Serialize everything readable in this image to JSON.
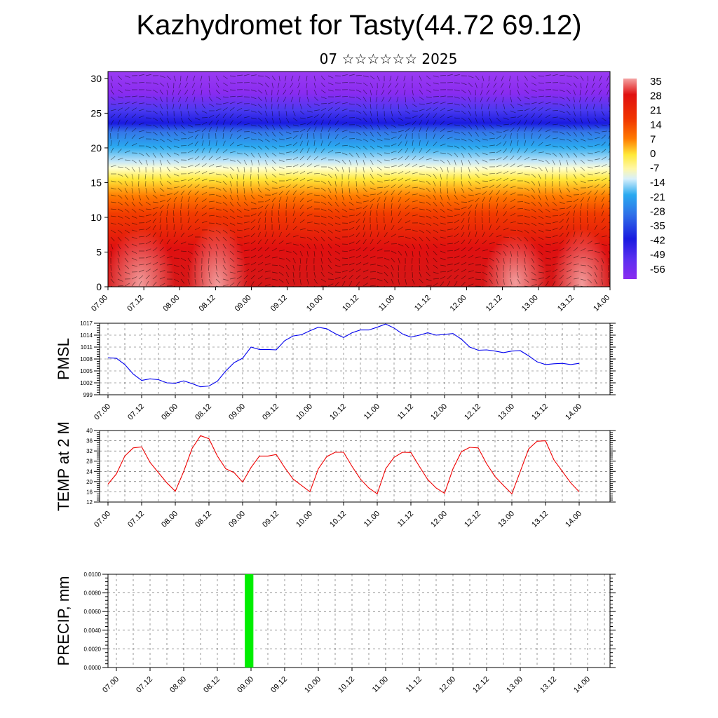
{
  "header": {
    "title": "Kazhydromet for Tasty(44.72 69.12)",
    "subtitle": "07 ☆☆☆☆☆☆ 2025"
  },
  "chart_data": [
    {
      "type": "heatmap",
      "name": "vertical cross-section",
      "y_ticks": [
        "0",
        "5",
        "10",
        "15",
        "20",
        "25",
        "30"
      ],
      "ylim": [
        0,
        31
      ],
      "x_ticks": [
        "07.00",
        "07.12",
        "08.00",
        "08.12",
        "09.00",
        "09.12",
        "10.00",
        "10.12",
        "11.00",
        "11.12",
        "12.00",
        "12.12",
        "13.00",
        "13.12",
        "14.00"
      ],
      "colorbar_labels": [
        "35",
        "28",
        "21",
        "14",
        "7",
        "0",
        "-7",
        "-14",
        "-21",
        "-28",
        "-35",
        "-42",
        "-49",
        "-56"
      ],
      "colorbar_range": [
        -63,
        42
      ],
      "colors": {
        "hot": "#f4a3a3",
        "red": "#e01010",
        "orange": "#ff7a00",
        "yellow": "#ffe93a",
        "cyan": "#2aaaf0",
        "blue": "#1a1ae0",
        "purple": "#8a2bf0"
      },
      "overlay": "wind barbs"
    },
    {
      "type": "line",
      "ylabel": "PMSL",
      "y_ticks": [
        "999",
        "1002",
        "1005",
        "1008",
        "1011",
        "1014",
        "1017"
      ],
      "ylim": [
        999,
        1017
      ],
      "x_ticks": [
        "07.00",
        "07.12",
        "08.00",
        "08.12",
        "09.00",
        "09.12",
        "10.00",
        "10.12",
        "11.00",
        "11.12",
        "12.00",
        "12.12",
        "13.00",
        "13.12",
        "14.00"
      ],
      "x_hours": [
        0,
        3,
        6,
        9,
        12,
        15,
        18,
        21,
        24,
        27,
        30,
        33,
        36,
        39,
        42,
        45,
        48,
        51,
        54,
        57,
        60,
        63,
        66,
        69,
        72,
        75,
        78,
        81,
        84,
        87,
        90,
        93,
        96,
        99,
        102,
        105,
        108,
        111,
        114,
        117,
        120,
        123,
        126,
        129,
        132,
        135,
        138,
        141,
        144,
        147,
        150,
        153,
        156,
        159,
        162,
        165,
        168
      ],
      "values": [
        1008.3,
        1008.2,
        1006.6,
        1004.2,
        1002.6,
        1003.0,
        1002.8,
        1002.0,
        1001.9,
        1002.5,
        1001.8,
        1001.0,
        1001.2,
        1002.4,
        1005.0,
        1007.1,
        1008.2,
        1011.0,
        1010.4,
        1010.4,
        1010.3,
        1012.6,
        1013.8,
        1014.1,
        1015.1,
        1016.0,
        1015.6,
        1014.4,
        1013.4,
        1014.6,
        1015.3,
        1015.3,
        1016.0,
        1016.8,
        1015.8,
        1014.3,
        1013.5,
        1014.0,
        1014.6,
        1014.0,
        1014.2,
        1014.4,
        1013.0,
        1011.0,
        1010.2,
        1010.3,
        1010.0,
        1009.6,
        1010.0,
        1010.1,
        1008.8,
        1007.3,
        1006.6,
        1006.8,
        1006.9,
        1006.6,
        1006.9
      ],
      "line_color": "#0000ee"
    },
    {
      "type": "line",
      "ylabel": "TEMP at 2 M",
      "y_ticks": [
        "12",
        "16",
        "20",
        "24",
        "28",
        "32",
        "36",
        "40"
      ],
      "ylim": [
        12,
        40
      ],
      "x_ticks": [
        "07.00",
        "07.12",
        "08.00",
        "08.12",
        "09.00",
        "09.12",
        "10.00",
        "10.12",
        "11.00",
        "11.12",
        "12.00",
        "12.12",
        "13.00",
        "13.12",
        "14.00"
      ],
      "x_hours": [
        0,
        3,
        6,
        9,
        12,
        15,
        18,
        21,
        24,
        27,
        30,
        33,
        36,
        39,
        42,
        45,
        48,
        51,
        54,
        57,
        60,
        63,
        66,
        69,
        72,
        75,
        78,
        81,
        84,
        87,
        90,
        93,
        96,
        99,
        102,
        105,
        108,
        111,
        114,
        117,
        120,
        123,
        126,
        129,
        132,
        135,
        138,
        141,
        144,
        147,
        150,
        153,
        156,
        159,
        162,
        165,
        168
      ],
      "values": [
        19,
        23,
        30,
        33.2,
        33.6,
        27.5,
        23.5,
        19.5,
        16.2,
        24,
        33,
        38,
        36.8,
        30,
        25,
        23.5,
        19.8,
        25.5,
        30,
        30,
        30.6,
        25.5,
        21,
        18.5,
        16,
        25,
        29.8,
        31.5,
        31.5,
        26,
        21,
        17.5,
        15.2,
        25,
        29.5,
        31.5,
        31.4,
        26,
        20.8,
        17.5,
        15.4,
        25,
        31.7,
        33.4,
        33.2,
        27,
        22,
        18.5,
        15.2,
        24,
        32.8,
        35.8,
        36,
        28.5,
        24,
        19.5,
        16
      ],
      "line_color": "#ee0000"
    },
    {
      "type": "bar",
      "ylabel": "PRECIP, mm",
      "y_ticks": [
        "0.0000",
        "0.0020",
        "0.0040",
        "0.0060",
        "0.0080",
        "0.0100"
      ],
      "ylim": [
        0,
        0.01
      ],
      "x_ticks": [
        "07.00",
        "07.12",
        "08.00",
        "08.12",
        "09.00",
        "09.12",
        "10.00",
        "10.12",
        "11.00",
        "11.12",
        "12.00",
        "12.12",
        "13.00",
        "13.12",
        "14.00"
      ],
      "bars": [
        {
          "x_hours": 46.5,
          "width_hours": 3,
          "value": 0.01
        }
      ],
      "bar_color": "#00ee00"
    }
  ]
}
